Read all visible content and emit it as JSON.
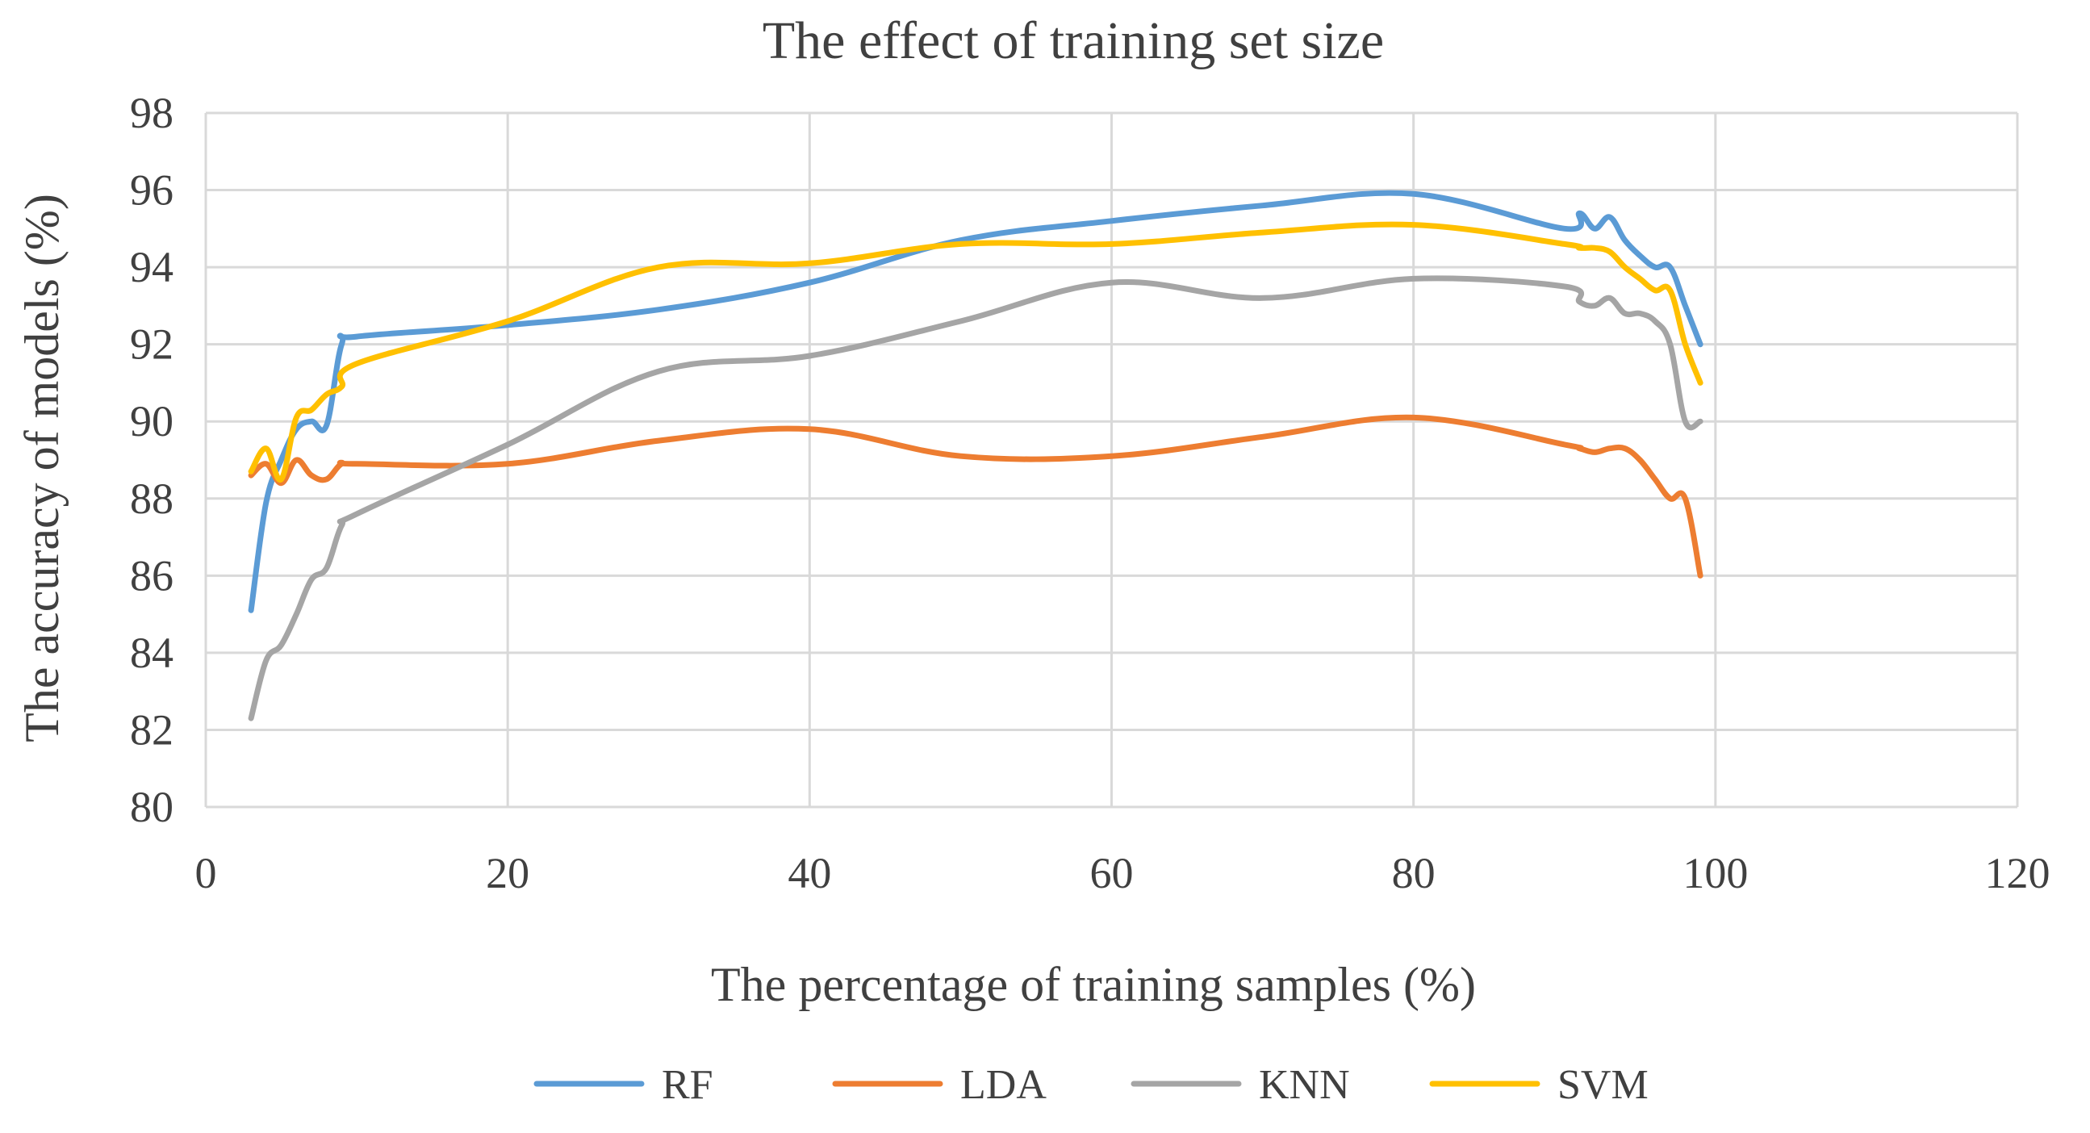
{
  "chart_data": {
    "type": "line",
    "title": "The effect of training set size",
    "xlabel": "The percentage of training samples (%)",
    "ylabel": "The accuracy of models (%)",
    "xlim": [
      0,
      120
    ],
    "ylim": [
      80,
      98
    ],
    "x_ticks": [
      "0",
      "20",
      "40",
      "60",
      "80",
      "100",
      "120"
    ],
    "y_ticks": [
      "80",
      "82",
      "84",
      "86",
      "88",
      "90",
      "92",
      "94",
      "96",
      "98"
    ],
    "grid": true,
    "legend_position": "bottom",
    "series": [
      {
        "name": "RF",
        "color": "#5b9bd5",
        "x": [
          3,
          4,
          5,
          6,
          7,
          8,
          9,
          10,
          20,
          30,
          40,
          50,
          60,
          70,
          80,
          90,
          91,
          92,
          93,
          94,
          95,
          96,
          97,
          98,
          99
        ],
        "y": [
          85.1,
          87.9,
          89.0,
          89.8,
          90.0,
          89.9,
          92.0,
          92.2,
          92.5,
          92.9,
          93.6,
          94.7,
          95.2,
          95.6,
          95.9,
          95.0,
          95.4,
          95.0,
          95.3,
          94.7,
          94.3,
          94.0,
          94.0,
          93.0,
          92.0
        ]
      },
      {
        "name": "LDA",
        "color": "#ed7d31",
        "x": [
          3,
          4,
          5,
          6,
          7,
          8,
          9,
          10,
          20,
          30,
          40,
          50,
          60,
          70,
          80,
          90,
          91,
          92,
          93,
          94,
          95,
          96,
          97,
          98,
          99
        ],
        "y": [
          88.6,
          88.9,
          88.4,
          89.0,
          88.6,
          88.5,
          88.9,
          88.9,
          88.9,
          89.5,
          89.8,
          89.1,
          89.1,
          89.6,
          90.1,
          89.4,
          89.3,
          89.2,
          89.3,
          89.3,
          89.0,
          88.5,
          88.0,
          88.0,
          86.0
        ]
      },
      {
        "name": "KNN",
        "color": "#a5a5a5",
        "x": [
          3,
          4,
          5,
          6,
          7,
          8,
          9,
          10,
          20,
          30,
          40,
          50,
          60,
          70,
          80,
          90,
          91,
          92,
          93,
          94,
          95,
          96,
          97,
          98,
          99
        ],
        "y": [
          82.3,
          83.8,
          84.2,
          85.0,
          85.9,
          86.2,
          87.3,
          87.6,
          89.4,
          91.3,
          91.7,
          92.6,
          93.6,
          93.2,
          93.7,
          93.5,
          93.1,
          93.0,
          93.2,
          92.8,
          92.8,
          92.6,
          92.0,
          90.0,
          90.0
        ]
      },
      {
        "name": "SVM",
        "color": "#ffc000",
        "x": [
          3,
          4,
          5,
          6,
          7,
          8,
          9,
          10,
          20,
          30,
          40,
          50,
          60,
          70,
          80,
          90,
          91,
          92,
          93,
          94,
          95,
          96,
          97,
          98,
          99
        ],
        "y": [
          88.7,
          89.3,
          88.5,
          90.1,
          90.3,
          90.7,
          90.9,
          91.5,
          92.6,
          94.0,
          94.1,
          94.6,
          94.6,
          94.9,
          95.1,
          94.6,
          94.5,
          94.5,
          94.4,
          94.0,
          93.7,
          93.4,
          93.4,
          92.0,
          91.0
        ]
      }
    ]
  }
}
